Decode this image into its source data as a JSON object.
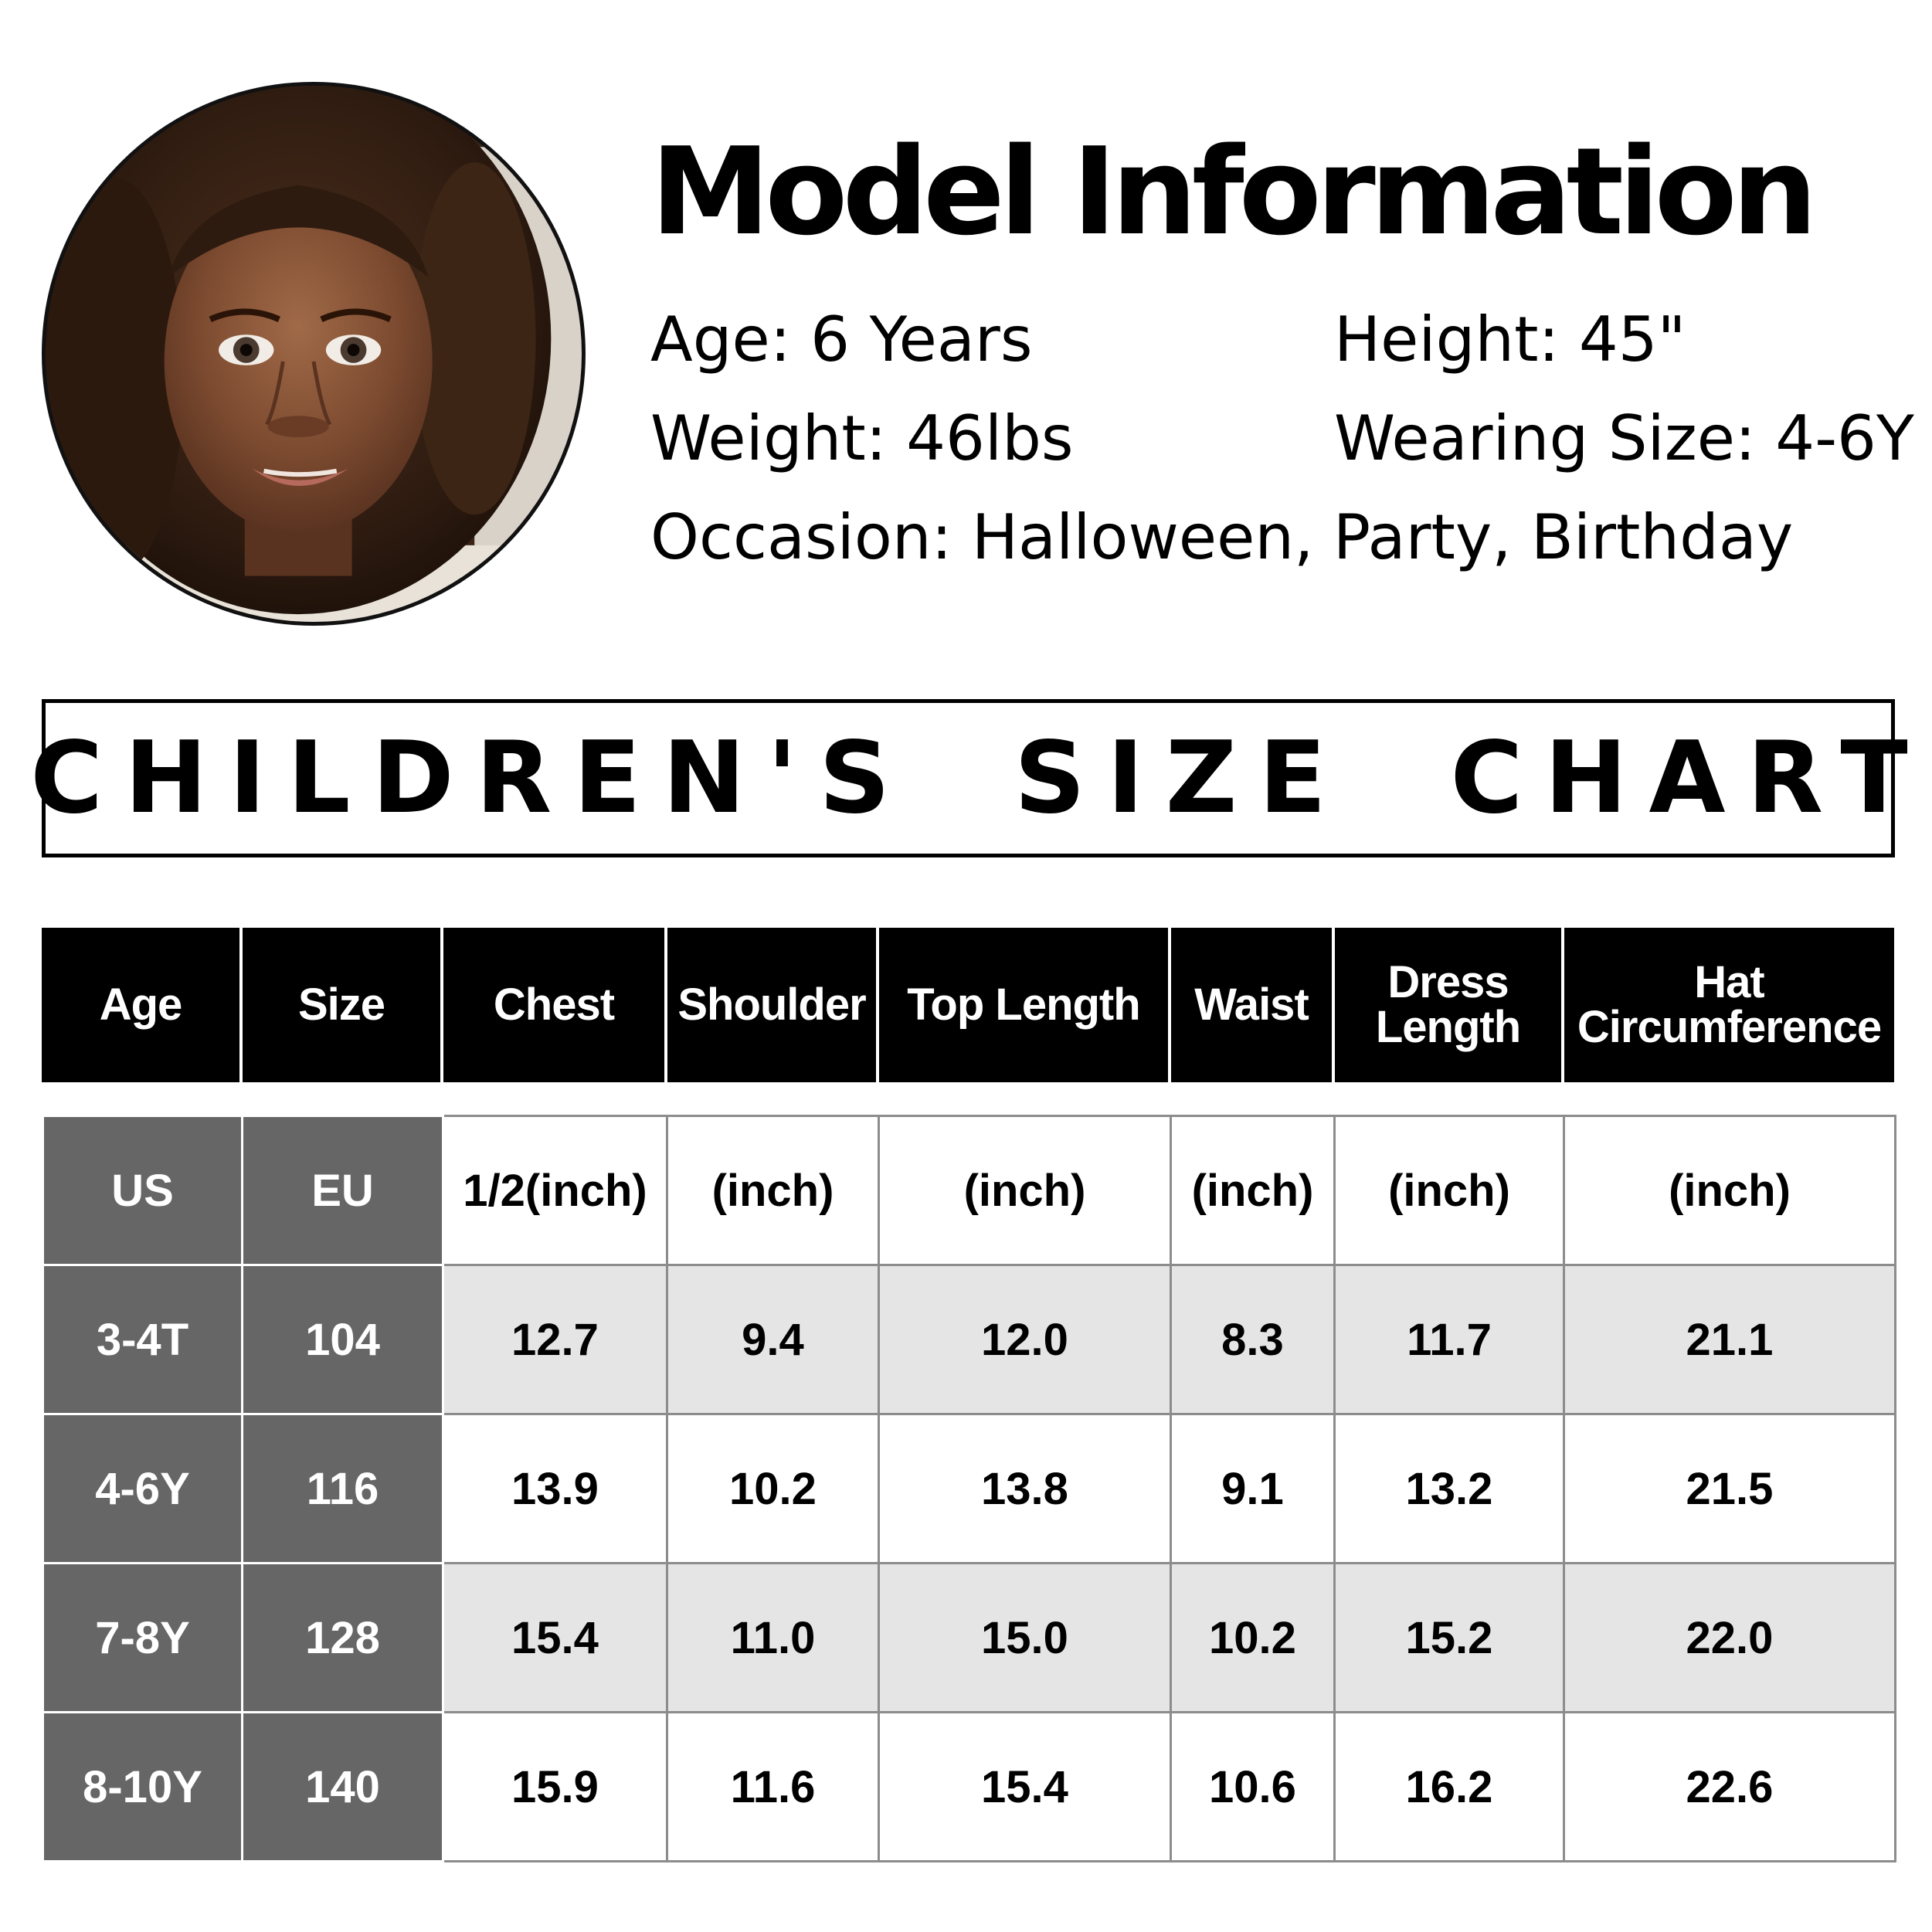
{
  "model": {
    "title": "Model Information",
    "age": "Age: 6 Years",
    "height": "Height: 45\"",
    "weight": "Weight: 46lbs",
    "wearing_size": "Wearing Size: 4-6Y",
    "occasion": "Occasion: Halloween, Party, Birthday"
  },
  "banner": "CHILDREN'S SIZE CHART",
  "table": {
    "headers": [
      [
        "Age"
      ],
      [
        "Size"
      ],
      [
        "Chest"
      ],
      [
        "Shoulder"
      ],
      [
        "Top Length"
      ],
      [
        "Waist"
      ],
      [
        "Dress",
        "Length"
      ],
      [
        "Hat",
        "Circumference"
      ]
    ],
    "units_row": [
      "US",
      "EU",
      "1/2(inch)",
      "(inch)",
      "(inch)",
      "(inch)",
      "(inch)",
      "(inch)"
    ],
    "rows": [
      [
        "3-4T",
        "104",
        "12.7",
        "9.4",
        "12.0",
        "8.3",
        "11.7",
        "21.1"
      ],
      [
        "4-6Y",
        "116",
        "13.9",
        "10.2",
        "13.8",
        "9.1",
        "13.2",
        "21.5"
      ],
      [
        "7-8Y",
        "128",
        "15.4",
        "11.0",
        "15.0",
        "10.2",
        "15.2",
        "22.0"
      ],
      [
        "8-10Y",
        "140",
        "15.9",
        "11.6",
        "15.4",
        "10.6",
        "16.2",
        "22.6"
      ]
    ]
  },
  "colors": {
    "header_bg": "#000000",
    "side_bg": "#666666",
    "shade_bg": "#e5e5e5"
  }
}
